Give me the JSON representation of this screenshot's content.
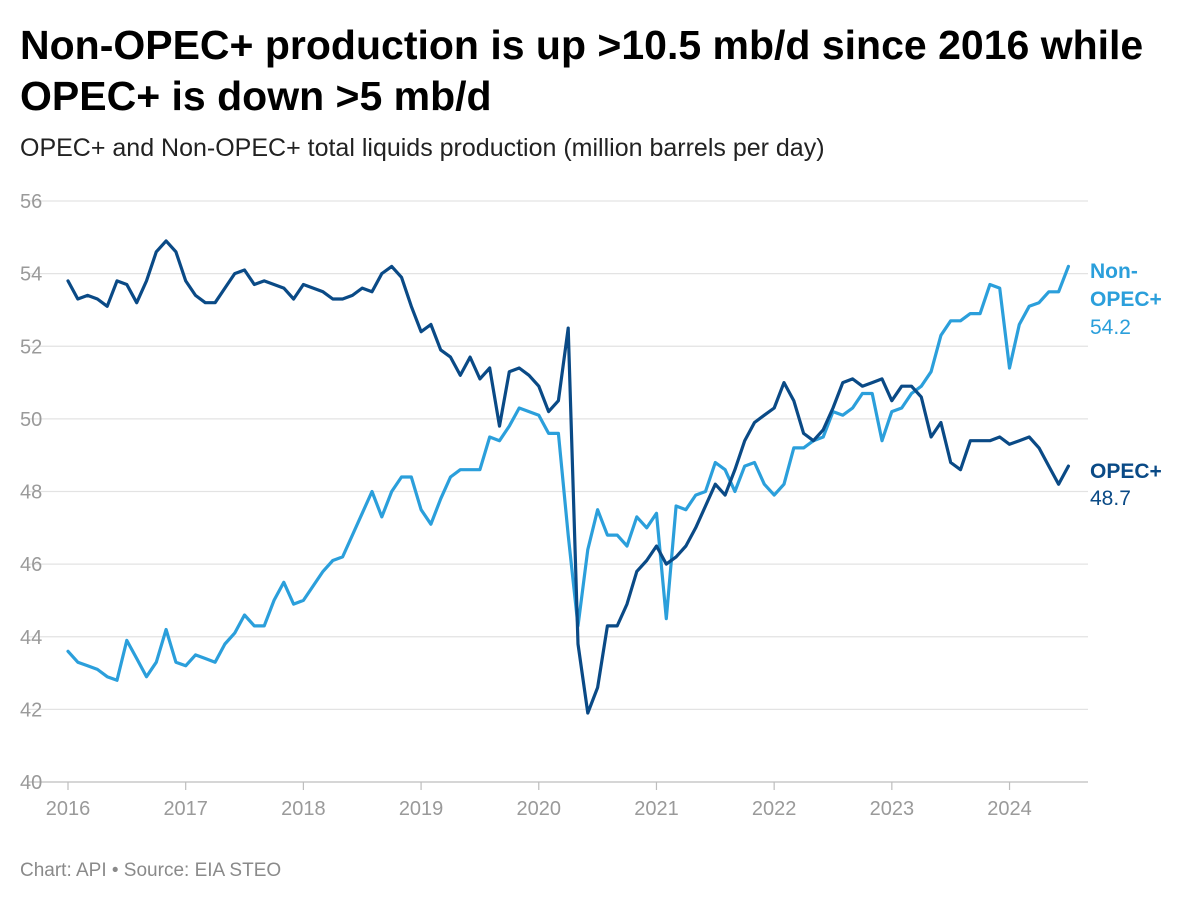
{
  "title": "Non-OPEC+ production is up >10.5 mb/d since 2016 while OPEC+ is down >5 mb/d",
  "subtitle": "OPEC+ and Non-OPEC+ total liquids production (million barrels per day)",
  "footer": "Chart: API • Source: EIA STEO",
  "chart_data": {
    "type": "line",
    "title": "Non-OPEC+ production is up >10.5 mb/d since 2016 while OPEC+ is down >5 mb/d",
    "subtitle": "OPEC+ and Non-OPEC+ total liquids production (million barrels per day)",
    "xlabel": "",
    "ylabel": "",
    "ylim": [
      40,
      56
    ],
    "yticks": [
      40,
      42,
      44,
      46,
      48,
      50,
      52,
      54,
      56
    ],
    "xlim": [
      "2016-01",
      "2024-09"
    ],
    "xticks": [
      "2016",
      "2017",
      "2018",
      "2019",
      "2020",
      "2021",
      "2022",
      "2023",
      "2024"
    ],
    "grid": true,
    "legend": "direct labels at right end of lines",
    "x": [
      "2016-01",
      "2016-02",
      "2016-03",
      "2016-04",
      "2016-05",
      "2016-06",
      "2016-07",
      "2016-08",
      "2016-09",
      "2016-10",
      "2016-11",
      "2016-12",
      "2017-01",
      "2017-02",
      "2017-03",
      "2017-04",
      "2017-05",
      "2017-06",
      "2017-07",
      "2017-08",
      "2017-09",
      "2017-10",
      "2017-11",
      "2017-12",
      "2018-01",
      "2018-02",
      "2018-03",
      "2018-04",
      "2018-05",
      "2018-06",
      "2018-07",
      "2018-08",
      "2018-09",
      "2018-10",
      "2018-11",
      "2018-12",
      "2019-01",
      "2019-02",
      "2019-03",
      "2019-04",
      "2019-05",
      "2019-06",
      "2019-07",
      "2019-08",
      "2019-09",
      "2019-10",
      "2019-11",
      "2019-12",
      "2020-01",
      "2020-02",
      "2020-03",
      "2020-04",
      "2020-05",
      "2020-06",
      "2020-07",
      "2020-08",
      "2020-09",
      "2020-10",
      "2020-11",
      "2020-12",
      "2021-01",
      "2021-02",
      "2021-03",
      "2021-04",
      "2021-05",
      "2021-06",
      "2021-07",
      "2021-08",
      "2021-09",
      "2021-10",
      "2021-11",
      "2021-12",
      "2022-01",
      "2022-02",
      "2022-03",
      "2022-04",
      "2022-05",
      "2022-06",
      "2022-07",
      "2022-08",
      "2022-09",
      "2022-10",
      "2022-11",
      "2022-12",
      "2023-01",
      "2023-02",
      "2023-03",
      "2023-04",
      "2023-05",
      "2023-06",
      "2023-07",
      "2023-08",
      "2023-09",
      "2023-10",
      "2023-11",
      "2023-12",
      "2024-01",
      "2024-02",
      "2024-03",
      "2024-04",
      "2024-05",
      "2024-06",
      "2024-07"
    ],
    "series": [
      {
        "name": "Non-OPEC+",
        "color": "#2b9fdb",
        "end_value": "54.2",
        "values": [
          43.6,
          43.3,
          43.2,
          43.1,
          42.9,
          42.8,
          43.9,
          43.4,
          42.9,
          43.3,
          44.2,
          43.3,
          43.2,
          43.5,
          43.4,
          43.3,
          43.8,
          44.1,
          44.6,
          44.3,
          44.3,
          45.0,
          45.5,
          44.9,
          45.0,
          45.4,
          45.8,
          46.1,
          46.2,
          46.8,
          47.4,
          48.0,
          47.3,
          48.0,
          48.4,
          48.4,
          47.5,
          47.1,
          47.8,
          48.4,
          48.6,
          48.6,
          48.6,
          49.5,
          49.4,
          49.8,
          50.3,
          50.2,
          50.1,
          49.6,
          49.6,
          46.8,
          44.3,
          46.4,
          47.5,
          46.8,
          46.8,
          46.5,
          47.3,
          47.0,
          47.4,
          44.5,
          47.6,
          47.5,
          47.9,
          48.0,
          48.8,
          48.6,
          48.0,
          48.7,
          48.8,
          48.2,
          47.9,
          48.2,
          49.2,
          49.2,
          49.4,
          49.5,
          50.2,
          50.1,
          50.3,
          50.7,
          50.7,
          49.4,
          50.2,
          50.3,
          50.7,
          50.9,
          51.3,
          52.3,
          52.7,
          52.7,
          52.9,
          52.9,
          53.7,
          53.6,
          51.4,
          52.6,
          53.1,
          53.2,
          53.5,
          53.5,
          54.2
        ]
      },
      {
        "name": "OPEC+",
        "color": "#0a4a86",
        "end_value": "48.7",
        "values": [
          53.8,
          53.3,
          53.4,
          53.3,
          53.1,
          53.8,
          53.7,
          53.2,
          53.8,
          54.6,
          54.9,
          54.6,
          53.8,
          53.4,
          53.2,
          53.2,
          53.6,
          54.0,
          54.1,
          53.7,
          53.8,
          53.7,
          53.6,
          53.3,
          53.7,
          53.6,
          53.5,
          53.3,
          53.3,
          53.4,
          53.6,
          53.5,
          54.0,
          54.2,
          53.9,
          53.1,
          52.4,
          52.6,
          51.9,
          51.7,
          51.2,
          51.7,
          51.1,
          51.4,
          49.8,
          51.3,
          51.4,
          51.2,
          50.9,
          50.2,
          50.5,
          52.5,
          43.8,
          41.9,
          42.6,
          44.3,
          44.3,
          44.9,
          45.8,
          46.1,
          46.5,
          46.0,
          46.2,
          46.5,
          47.0,
          47.6,
          48.2,
          47.9,
          48.6,
          49.4,
          49.9,
          50.1,
          50.3,
          51.0,
          50.5,
          49.6,
          49.4,
          49.7,
          50.3,
          51.0,
          51.1,
          50.9,
          51.0,
          51.1,
          50.5,
          50.9,
          50.9,
          50.6,
          49.5,
          49.9,
          48.8,
          48.6,
          49.4,
          49.4,
          49.4,
          49.5,
          49.3,
          49.4,
          49.5,
          49.2,
          48.7,
          48.2,
          48.7
        ]
      }
    ]
  }
}
